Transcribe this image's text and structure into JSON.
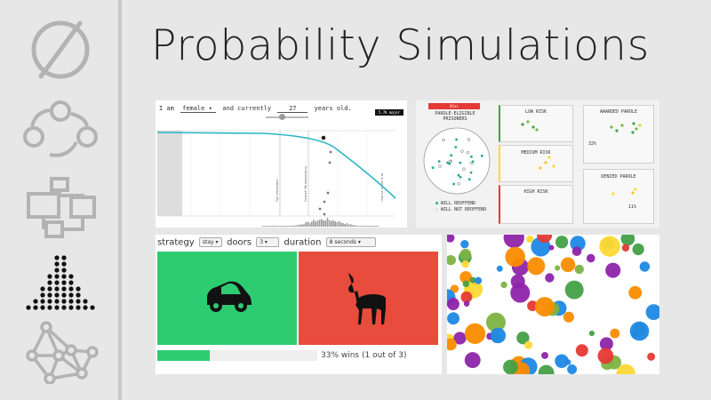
{
  "page": {
    "title": "Probability Simulations"
  },
  "sidebar": {
    "icons": [
      {
        "name": "empty-set-icon",
        "active": false
      },
      {
        "name": "cycle-icon",
        "active": false
      },
      {
        "name": "flowchart-icon",
        "active": false
      },
      {
        "name": "distribution-icon",
        "active": true
      },
      {
        "name": "network-icon",
        "active": false
      }
    ]
  },
  "life": {
    "prefix": "I am",
    "gender": "female",
    "mid": "and currently",
    "age": "27",
    "suffix": "years old.",
    "badge": "5.7K\nmajor",
    "annotations": [
      "Full retirement",
      "Overall life expectancy",
      "chance to die is at"
    ]
  },
  "parole": {
    "tag": "8tac",
    "eligible": "PAROLE-ELIGIBLE PRISONERS",
    "legend_a": "WILL REOFFEND",
    "legend_b": "WILL NOT REOFFEND",
    "low": "LOW RISK",
    "medium": "MEDIUM RISK",
    "high": "HIGH RISK",
    "awarded": "AWARDED PAROLE",
    "awarded_pct": "32%",
    "denied": "DENIED PAROLE",
    "denied_pct": "11%"
  },
  "monty": {
    "strategy_label": "strategy",
    "strategy_value": "stay",
    "doors_label": "doors",
    "doors_value": "3",
    "duration_label": "duration",
    "duration_value": "8 seconds",
    "win_fraction": 0.33,
    "result_text": "33% wins (1 out of 3)",
    "door_1": "car",
    "door_2": "goat",
    "colors": {
      "win": "#2ecc71",
      "lose": "#e74c3c"
    }
  },
  "dots": {
    "palette": [
      "#e53935",
      "#43a047",
      "#1e88e5",
      "#8e24aa",
      "#fb8c00",
      "#fdd835",
      "#7cb342"
    ]
  }
}
